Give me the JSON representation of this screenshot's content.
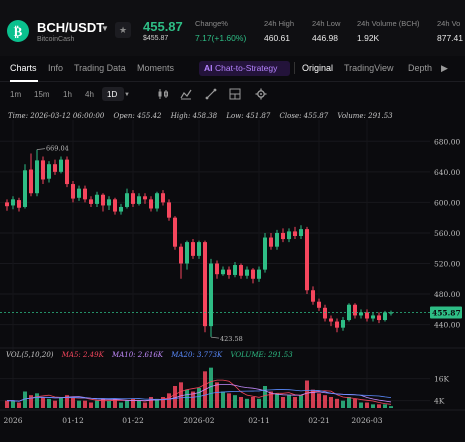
{
  "header": {
    "pair": "BCH/USDT",
    "coin_name": "BitcoinCash",
    "last_price": "455.87",
    "last_price_sub": "$455.87",
    "change_label": "Change%",
    "change_value": "7.17(+1.60%)",
    "high_label": "24h High",
    "high_value": "460.61",
    "low_label": "24h Low",
    "low_value": "446.98",
    "vol_base_label": "24h Volume (BCH)",
    "vol_base_value": "1.92K",
    "vol_quote_label": "24h Vo",
    "vol_quote_value": "877.41",
    "colors": {
      "up": "#2ebd85",
      "down": "#f6465d",
      "brand": "#0ac18e"
    }
  },
  "tabs": {
    "charts": "Charts",
    "info": "Info",
    "trading_data": "Trading Data",
    "moments": "Moments",
    "ai_badge": "AI",
    "ai_label": "Chat-to-Strategy",
    "original": "Original",
    "tradingview": "TradingView",
    "depth": "Depth"
  },
  "toolbar": {
    "timeframes": [
      "1m",
      "15m",
      "1h",
      "4h",
      "1D"
    ],
    "active": "1D",
    "icons": [
      "candle-type-icon",
      "indicator-icon",
      "drawing-icon",
      "chart-layout-icon",
      "settings-icon"
    ]
  },
  "ohlc": {
    "time": "Time: 2026-03-12 06:00:00",
    "open": "Open: 455.42",
    "high": "High: 458.38",
    "low": "Low: 451.87",
    "close": "Close: 455.87",
    "volume": "Volume: 291.53"
  },
  "volume_legend": {
    "vol": "VOL(5,10,20)",
    "ma5": "MA5: 2.49K",
    "ma10": "MA10: 2.616K",
    "ma20": "MA20: 3.773K",
    "volume": "VOLUME: 291.53",
    "colors": {
      "ma5": "#f6465d",
      "ma10": "#c48cff",
      "ma20": "#5b8cff",
      "volume": "#2ebd85"
    }
  },
  "chart_data": {
    "type": "candlestick",
    "price_ticks": [
      "680.00",
      "640.00",
      "600.00",
      "560.00",
      "520.00",
      "480.00",
      "440.00"
    ],
    "price_tick_values": [
      680,
      640,
      600,
      560,
      520,
      480,
      440
    ],
    "ylim": [
      412,
      700
    ],
    "current_price": "455.87",
    "current_price_value": 455.87,
    "max_label": "669.04",
    "max_value": 669.04,
    "min_label": "423.58",
    "min_value": 423.58,
    "volume_ticks": [
      "16K",
      "4K"
    ],
    "volume_tick_values": [
      16,
      4
    ],
    "volume_ylim": [
      0,
      24
    ],
    "x_labels": [
      "2026",
      "01-12",
      "01-22",
      "2026-02",
      "02-11",
      "02-21",
      "2026-03"
    ],
    "x_label_index": [
      1,
      11,
      21,
      32,
      42,
      52,
      60
    ],
    "candles": [
      {
        "o": 600,
        "c": 595,
        "h": 604,
        "l": 589,
        "v": 4
      },
      {
        "o": 596,
        "c": 604,
        "h": 608,
        "l": 591,
        "v": 4
      },
      {
        "o": 603,
        "c": 593,
        "h": 606,
        "l": 588,
        "v": 3
      },
      {
        "o": 594,
        "c": 642,
        "h": 650,
        "l": 592,
        "v": 9
      },
      {
        "o": 643,
        "c": 612,
        "h": 664,
        "l": 608,
        "v": 7
      },
      {
        "o": 612,
        "c": 655,
        "h": 669,
        "l": 608,
        "v": 8
      },
      {
        "o": 655,
        "c": 630,
        "h": 660,
        "l": 624,
        "v": 6
      },
      {
        "o": 631,
        "c": 650,
        "h": 654,
        "l": 626,
        "v": 5
      },
      {
        "o": 650,
        "c": 640,
        "h": 656,
        "l": 636,
        "v": 4
      },
      {
        "o": 640,
        "c": 656,
        "h": 660,
        "l": 638,
        "v": 6
      },
      {
        "o": 656,
        "c": 624,
        "h": 660,
        "l": 620,
        "v": 7
      },
      {
        "o": 624,
        "c": 605,
        "h": 628,
        "l": 600,
        "v": 6
      },
      {
        "o": 606,
        "c": 618,
        "h": 622,
        "l": 602,
        "v": 4
      },
      {
        "o": 618,
        "c": 604,
        "h": 622,
        "l": 600,
        "v": 4
      },
      {
        "o": 604,
        "c": 598,
        "h": 608,
        "l": 594,
        "v": 3
      },
      {
        "o": 598,
        "c": 610,
        "h": 614,
        "l": 594,
        "v": 4
      },
      {
        "o": 610,
        "c": 596,
        "h": 612,
        "l": 588,
        "v": 5
      },
      {
        "o": 596,
        "c": 604,
        "h": 608,
        "l": 590,
        "v": 4
      },
      {
        "o": 604,
        "c": 588,
        "h": 606,
        "l": 584,
        "v": 5
      },
      {
        "o": 588,
        "c": 594,
        "h": 598,
        "l": 584,
        "v": 3
      },
      {
        "o": 594,
        "c": 612,
        "h": 618,
        "l": 592,
        "v": 4
      },
      {
        "o": 612,
        "c": 598,
        "h": 616,
        "l": 594,
        "v": 5
      },
      {
        "o": 598,
        "c": 608,
        "h": 612,
        "l": 596,
        "v": 4
      },
      {
        "o": 608,
        "c": 604,
        "h": 612,
        "l": 598,
        "v": 3
      },
      {
        "o": 604,
        "c": 592,
        "h": 608,
        "l": 588,
        "v": 6
      },
      {
        "o": 592,
        "c": 612,
        "h": 614,
        "l": 588,
        "v": 5
      },
      {
        "o": 612,
        "c": 600,
        "h": 616,
        "l": 596,
        "v": 6
      },
      {
        "o": 600,
        "c": 580,
        "h": 604,
        "l": 576,
        "v": 8
      },
      {
        "o": 580,
        "c": 542,
        "h": 582,
        "l": 538,
        "v": 12
      },
      {
        "o": 542,
        "c": 520,
        "h": 546,
        "l": 500,
        "v": 14
      },
      {
        "o": 520,
        "c": 548,
        "h": 550,
        "l": 512,
        "v": 10
      },
      {
        "o": 548,
        "c": 530,
        "h": 552,
        "l": 526,
        "v": 9
      },
      {
        "o": 530,
        "c": 548,
        "h": 550,
        "l": 526,
        "v": 11
      },
      {
        "o": 548,
        "c": 438,
        "h": 550,
        "l": 430,
        "v": 20
      },
      {
        "o": 438,
        "c": 520,
        "h": 526,
        "l": 424,
        "v": 22
      },
      {
        "o": 520,
        "c": 506,
        "h": 524,
        "l": 500,
        "v": 14
      },
      {
        "o": 506,
        "c": 512,
        "h": 516,
        "l": 504,
        "v": 9
      },
      {
        "o": 512,
        "c": 505,
        "h": 516,
        "l": 500,
        "v": 8
      },
      {
        "o": 505,
        "c": 518,
        "h": 522,
        "l": 502,
        "v": 7
      },
      {
        "o": 518,
        "c": 504,
        "h": 520,
        "l": 500,
        "v": 6
      },
      {
        "o": 504,
        "c": 512,
        "h": 516,
        "l": 500,
        "v": 5
      },
      {
        "o": 512,
        "c": 500,
        "h": 514,
        "l": 494,
        "v": 6
      },
      {
        "o": 500,
        "c": 512,
        "h": 516,
        "l": 496,
        "v": 5
      },
      {
        "o": 512,
        "c": 554,
        "h": 560,
        "l": 508,
        "v": 12
      },
      {
        "o": 554,
        "c": 542,
        "h": 560,
        "l": 538,
        "v": 9
      },
      {
        "o": 542,
        "c": 560,
        "h": 564,
        "l": 538,
        "v": 8
      },
      {
        "o": 560,
        "c": 552,
        "h": 566,
        "l": 548,
        "v": 6
      },
      {
        "o": 552,
        "c": 562,
        "h": 566,
        "l": 548,
        "v": 7
      },
      {
        "o": 562,
        "c": 556,
        "h": 568,
        "l": 552,
        "v": 6
      },
      {
        "o": 556,
        "c": 565,
        "h": 570,
        "l": 552,
        "v": 7
      },
      {
        "o": 565,
        "c": 485,
        "h": 568,
        "l": 480,
        "v": 15
      },
      {
        "o": 485,
        "c": 470,
        "h": 490,
        "l": 466,
        "v": 10
      },
      {
        "o": 470,
        "c": 462,
        "h": 474,
        "l": 458,
        "v": 8
      },
      {
        "o": 462,
        "c": 448,
        "h": 466,
        "l": 444,
        "v": 7
      },
      {
        "o": 448,
        "c": 444,
        "h": 452,
        "l": 438,
        "v": 6
      },
      {
        "o": 444,
        "c": 436,
        "h": 448,
        "l": 430,
        "v": 5
      },
      {
        "o": 436,
        "c": 446,
        "h": 450,
        "l": 432,
        "v": 4
      },
      {
        "o": 446,
        "c": 466,
        "h": 468,
        "l": 444,
        "v": 6
      },
      {
        "o": 466,
        "c": 452,
        "h": 468,
        "l": 448,
        "v": 5
      },
      {
        "o": 452,
        "c": 456,
        "h": 460,
        "l": 448,
        "v": 3
      },
      {
        "o": 456,
        "c": 448,
        "h": 460,
        "l": 444,
        "v": 3
      },
      {
        "o": 448,
        "c": 452,
        "h": 456,
        "l": 444,
        "v": 2
      },
      {
        "o": 452,
        "c": 446,
        "h": 456,
        "l": 442,
        "v": 2
      },
      {
        "o": 446,
        "c": 456,
        "h": 458,
        "l": 444,
        "v": 2
      },
      {
        "o": 455.42,
        "c": 455.87,
        "h": 458.38,
        "l": 451.87,
        "v": 1
      }
    ]
  }
}
